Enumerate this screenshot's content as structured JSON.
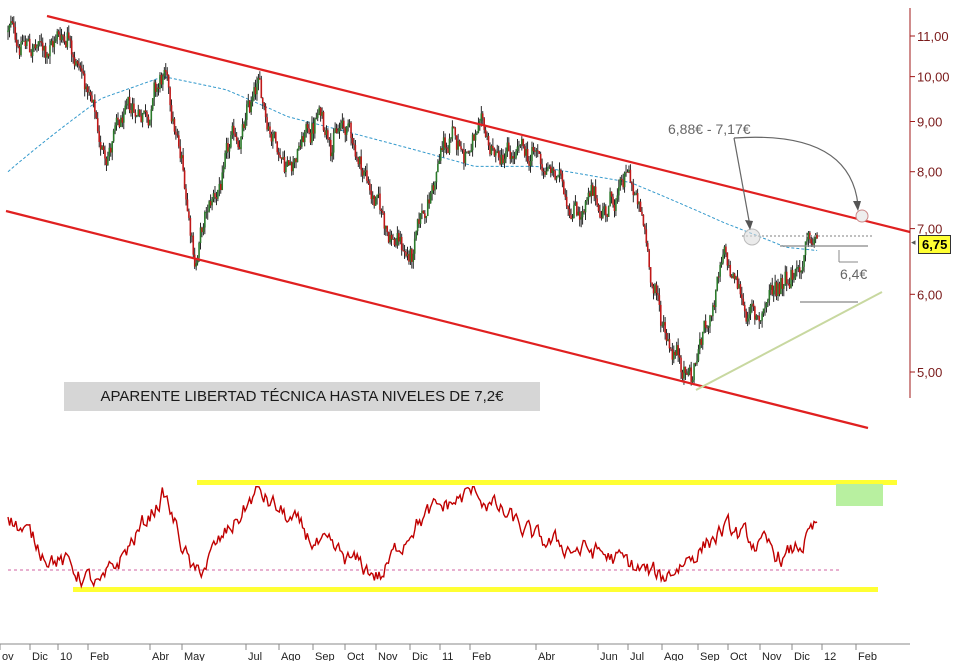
{
  "chart_data": {
    "type": "candlestick",
    "panels": [
      {
        "name": "price",
        "scale": "log",
        "y_ticks": [
          "11,00",
          "10,00",
          "9,00",
          "8,00",
          "7,00",
          "6,00",
          "5,00"
        ],
        "y_tick_values": [
          11,
          10,
          9,
          8,
          7,
          6,
          5
        ],
        "ylim": [
          4.7,
          12
        ],
        "price_series_key_points": [
          {
            "x": "Nov 2009",
            "y": 11.1
          },
          {
            "x": "Dic 2009",
            "y": 10.6
          },
          {
            "x": "Ene 2010",
            "y": 11.3
          },
          {
            "x": "Feb 2010",
            "y": 8.4
          },
          {
            "x": "Mar 2010",
            "y": 9.0
          },
          {
            "x": "Abr 2010",
            "y": 9.9
          },
          {
            "x": "May 2010",
            "y": 6.6
          },
          {
            "x": "Jun 2010",
            "y": 8.0
          },
          {
            "x": "Jul 2010",
            "y": 9.5
          },
          {
            "x": "Ago 2010",
            "y": 8.3
          },
          {
            "x": "Sep 2010",
            "y": 9.1
          },
          {
            "x": "Oct 2010",
            "y": 8.7
          },
          {
            "x": "Nov 2010",
            "y": 7.2
          },
          {
            "x": "Dic 2010",
            "y": 6.5
          },
          {
            "x": "Ene 2011",
            "y": 8.4
          },
          {
            "x": "Feb 2011",
            "y": 8.6
          },
          {
            "x": "Mar 2011",
            "y": 8.1
          },
          {
            "x": "Abr 2011",
            "y": 8.2
          },
          {
            "x": "May 2011",
            "y": 7.6
          },
          {
            "x": "Jun 2011",
            "y": 7.3
          },
          {
            "x": "Jul 2011",
            "y": 7.8
          },
          {
            "x": "Ago 2011",
            "y": 5.6
          },
          {
            "x": "Sep 2011",
            "y": 5.0
          },
          {
            "x": "Oct 2011",
            "y": 6.4
          },
          {
            "x": "Nov 2011",
            "y": 5.6
          },
          {
            "x": "Dic 2011",
            "y": 6.4
          },
          {
            "x": "Ene 2012",
            "y": 6.75
          }
        ],
        "moving_average_key_points": [
          {
            "x": "Nov 2009",
            "y": 8.0
          },
          {
            "x": "Feb 2010",
            "y": 9.5
          },
          {
            "x": "Abr 2010",
            "y": 10.0
          },
          {
            "x": "Jun 2010",
            "y": 9.7
          },
          {
            "x": "Ago 2010",
            "y": 9.1
          },
          {
            "x": "Nov 2010",
            "y": 8.6
          },
          {
            "x": "Feb 2011",
            "y": 8.1
          },
          {
            "x": "Abr 2011",
            "y": 8.1
          },
          {
            "x": "Jul 2011",
            "y": 7.8
          },
          {
            "x": "Oct 2011",
            "y": 7.1
          },
          {
            "x": "Dic 2011",
            "y": 6.7
          },
          {
            "x": "Ene 2012",
            "y": 6.65
          }
        ],
        "last_price_label": "6,75",
        "annotations": [
          {
            "text": "6,88€ - 7,17€"
          },
          {
            "text": "6,4€"
          },
          {
            "text": "APARENTE LIBERTAD TÉCNICA HASTA NIVELES DE 7,2€"
          }
        ]
      },
      {
        "name": "oscillator",
        "ylim": [
          0,
          100
        ],
        "upper_band": 85,
        "lower_band": 15,
        "midline": 30,
        "key_points": [
          {
            "x": "Nov 2009",
            "y": 72
          },
          {
            "x": "Dic 2009",
            "y": 45
          },
          {
            "x": "Feb 2010",
            "y": 10
          },
          {
            "x": "Abr 2010",
            "y": 90
          },
          {
            "x": "May 2010",
            "y": 18
          },
          {
            "x": "Jul 2010",
            "y": 92
          },
          {
            "x": "Sep 2010",
            "y": 45
          },
          {
            "x": "Nov 2010",
            "y": 20
          },
          {
            "x": "Dic 2010",
            "y": 65
          },
          {
            "x": "Feb 2011",
            "y": 92
          },
          {
            "x": "Abr 2011",
            "y": 50
          },
          {
            "x": "Jun 2011",
            "y": 40
          },
          {
            "x": "Ago 2011",
            "y": 18
          },
          {
            "x": "Oct 2011",
            "y": 60
          },
          {
            "x": "Dic 2011",
            "y": 35
          },
          {
            "x": "Ene 2012",
            "y": 60
          }
        ]
      }
    ],
    "x_tick_labels": [
      "ov",
      "Dic",
      "10",
      "Feb",
      "Abr",
      "May",
      "Jul",
      "Ago",
      "Sep",
      "Oct",
      "Nov",
      "Dic",
      "11",
      "Feb",
      "Abr",
      "Jun",
      "Jul",
      "Ago",
      "Sep",
      "Oct",
      "Nov",
      "Dic",
      "12",
      "Feb"
    ]
  },
  "colors": {
    "candle_up": "#2a7a2a",
    "candle_down": "#c01818",
    "channel_lines": "#e02020",
    "moving_average": "#3399cc",
    "support_line": "#c8d8a0",
    "oscillator_line": "#c00000",
    "oscillator_bands": "#ffff33",
    "oscillator_highlight": "#b8f0a0",
    "axis": "#a01818"
  }
}
